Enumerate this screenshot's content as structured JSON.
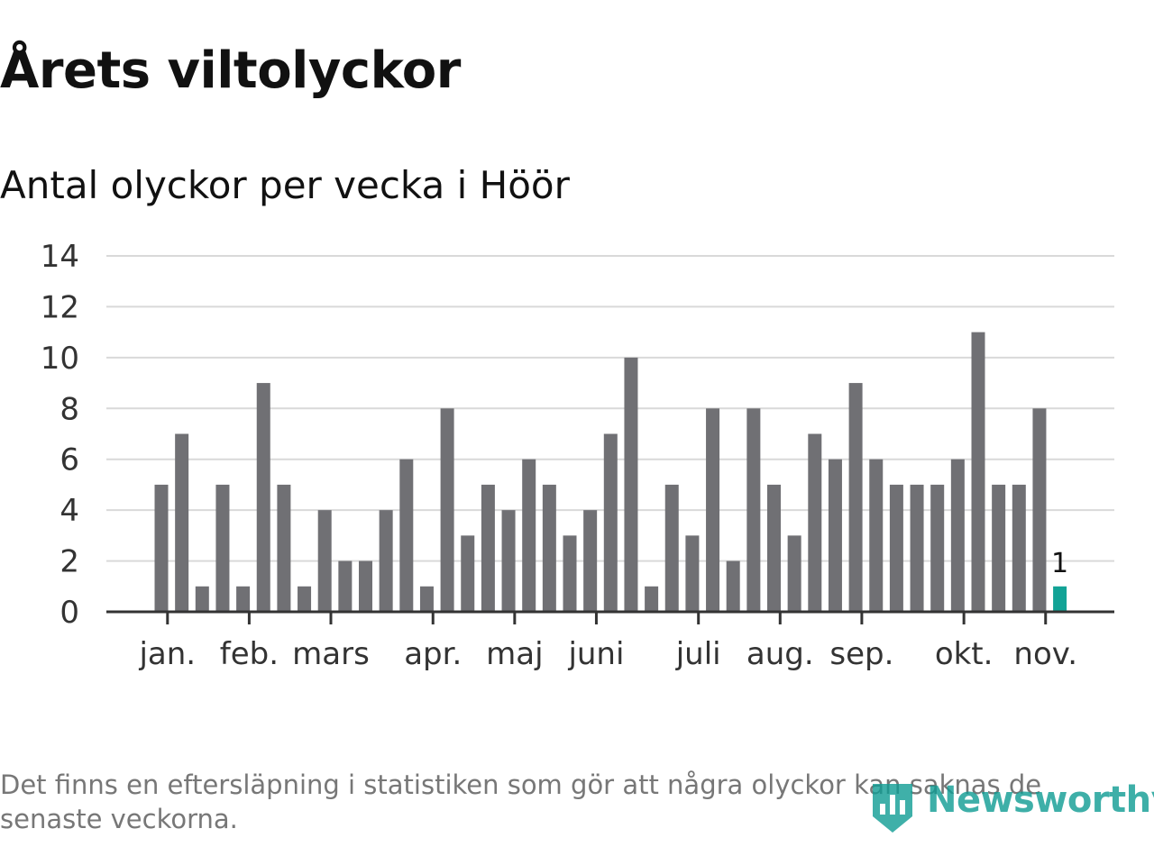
{
  "header": {
    "title": "Årets viltolyckor",
    "subtitle": "Antal olyckor per vecka i Höör"
  },
  "footer": {
    "note": "Det finns en eftersläpning i statistiken som gör att några olyckor kan saknas de senaste veckorna.",
    "brand": "Newsworthy"
  },
  "colors": {
    "bar": "#707074",
    "highlight": "#12a396",
    "grid": "#d9d9d9",
    "axis": "#333333",
    "text": "#111111",
    "tick_text": "#333333",
    "footnote": "#777777",
    "brand": "#0f9c93"
  },
  "chart_data": {
    "type": "bar",
    "title": "Årets viltolyckor",
    "subtitle": "Antal olyckor per vecka i Höör",
    "xlabel": "",
    "ylabel": "",
    "ylim": [
      0,
      14
    ],
    "yticks": [
      0,
      2,
      4,
      6,
      8,
      10,
      12,
      14
    ],
    "grid": true,
    "x": [
      1,
      2,
      3,
      4,
      5,
      6,
      7,
      8,
      9,
      10,
      11,
      12,
      13,
      14,
      15,
      16,
      17,
      18,
      19,
      20,
      21,
      22,
      23,
      24,
      25,
      26,
      27,
      28,
      29,
      30,
      31,
      32,
      33,
      34,
      35,
      36,
      37,
      38,
      39,
      40,
      41,
      42,
      43,
      44,
      45
    ],
    "values": [
      5,
      7,
      1,
      5,
      1,
      9,
      5,
      1,
      4,
      2,
      2,
      4,
      6,
      1,
      8,
      3,
      5,
      4,
      6,
      5,
      3,
      4,
      7,
      10,
      1,
      5,
      3,
      8,
      2,
      8,
      5,
      3,
      7,
      6,
      9,
      6,
      5,
      5,
      5,
      6,
      11,
      5,
      5,
      8,
      1
    ],
    "highlight_index": 44,
    "highlight_label": "1",
    "month_ticks": [
      {
        "label": "jan.",
        "x": 1.3
      },
      {
        "label": "feb.",
        "x": 5.3
      },
      {
        "label": "mars",
        "x": 9.3
      },
      {
        "label": "apr.",
        "x": 14.3
      },
      {
        "label": "maj",
        "x": 18.3
      },
      {
        "label": "juni",
        "x": 22.3
      },
      {
        "label": "juli",
        "x": 27.3
      },
      {
        "label": "aug.",
        "x": 31.3
      },
      {
        "label": "sep.",
        "x": 35.3
      },
      {
        "label": "okt.",
        "x": 40.3
      },
      {
        "label": "nov.",
        "x": 44.3
      }
    ]
  }
}
